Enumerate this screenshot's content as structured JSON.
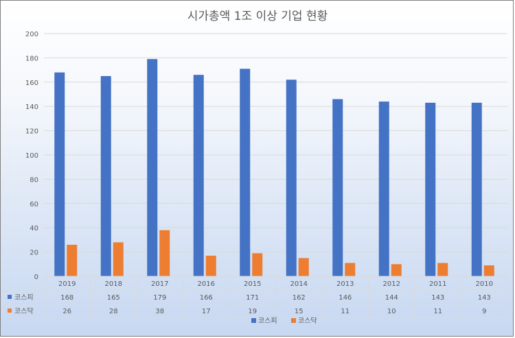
{
  "chart_data": {
    "type": "bar",
    "title": "시가총액 1조 이상 기업 현황",
    "categories": [
      "2019",
      "2018",
      "2017",
      "2016",
      "2015",
      "2014",
      "2013",
      "2012",
      "2011",
      "2010"
    ],
    "series": [
      {
        "name": "코스피",
        "color": "#4472c4",
        "values": [
          168,
          165,
          179,
          166,
          171,
          162,
          146,
          144,
          143,
          143
        ]
      },
      {
        "name": "코스닥",
        "color": "#ed7d31",
        "values": [
          26,
          28,
          38,
          17,
          19,
          15,
          11,
          10,
          11,
          9
        ]
      }
    ],
    "ylim": [
      0,
      200
    ],
    "yticks": [
      0,
      20,
      40,
      60,
      80,
      100,
      120,
      140,
      160,
      180,
      200
    ],
    "grid": true,
    "legend": "bottom",
    "data_table": true
  }
}
